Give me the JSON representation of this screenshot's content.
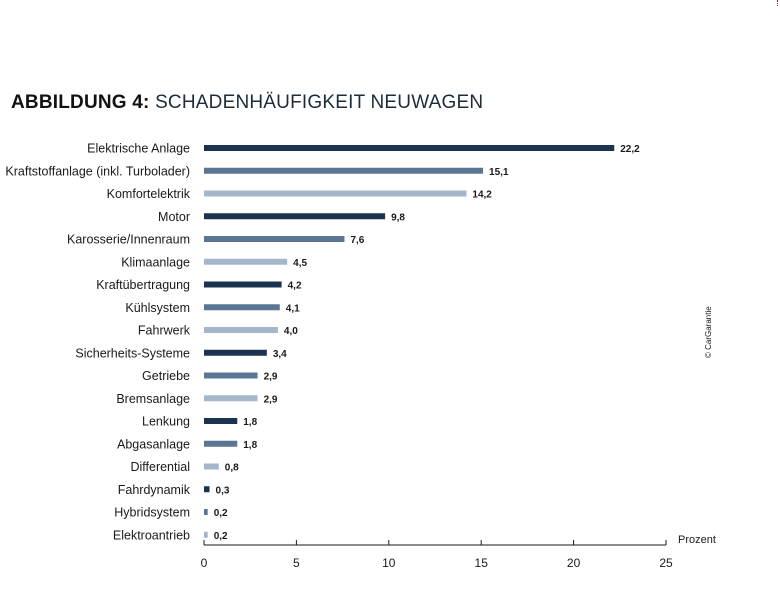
{
  "title": {
    "prefix": "ABBILDUNG 4:",
    "main": "SCHADENHÄUFIGKEIT NEUWAGEN"
  },
  "copyright": "© CarGarantie",
  "colors": {
    "dark": "#1b3350",
    "medium": "#5b7694",
    "light": "#a3b6cb",
    "axis": "#1a1a1a"
  },
  "chart_data": {
    "type": "bar",
    "orientation": "horizontal",
    "title": "ABBILDUNG 4: SCHADENHÄUFIGKEIT NEUWAGEN",
    "xlabel": "Prozent",
    "ylabel": "",
    "xlim": [
      0,
      25
    ],
    "xticks": [
      "0",
      "5",
      "10",
      "15",
      "20",
      "25"
    ],
    "grid": false,
    "legend": "none",
    "bar_color_cycle": [
      "dark",
      "medium",
      "light"
    ],
    "categories": [
      "Elektrische Anlage",
      "Kraftstoffanlage (inkl. Turbolader)",
      "Komfortelektrik",
      "Motor",
      "Karosserie/Innenraum",
      "Klimaanlage",
      "Kraftübertragung",
      "Kühlsystem",
      "Fahrwerk",
      "Sicherheits-Systeme",
      "Getriebe",
      "Bremsanlage",
      "Lenkung",
      "Abgasanlage",
      "Differential",
      "Fahrdynamik",
      "Hybridsystem",
      "Elektroantrieb"
    ],
    "values": [
      22.2,
      15.1,
      14.2,
      9.8,
      7.6,
      4.5,
      4.2,
      4.1,
      4.0,
      3.4,
      2.9,
      2.9,
      1.8,
      1.8,
      0.8,
      0.3,
      0.2,
      0.2
    ],
    "value_labels": [
      "22,2",
      "15,1",
      "14,2",
      "9,8",
      "7,6",
      "4,5",
      "4,2",
      "4,1",
      "4,0",
      "3,4",
      "2,9",
      "2,9",
      "1,8",
      "1,8",
      "0,8",
      "0,3",
      "0,2",
      "0,2"
    ]
  }
}
